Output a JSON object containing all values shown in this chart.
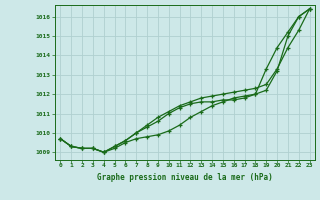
{
  "background_color": "#cde8e8",
  "grid_color": "#b0d0d0",
  "line_color": "#1a6b1a",
  "xlabel": "Graphe pression niveau de la mer (hPa)",
  "ylim": [
    1008.6,
    1016.6
  ],
  "xlim": [
    -0.5,
    23.5
  ],
  "yticks": [
    1009,
    1010,
    1011,
    1012,
    1013,
    1014,
    1015,
    1016
  ],
  "xticks": [
    0,
    1,
    2,
    3,
    4,
    5,
    6,
    7,
    8,
    9,
    10,
    11,
    12,
    13,
    14,
    15,
    16,
    17,
    18,
    19,
    20,
    21,
    22,
    23
  ],
  "series1": [
    1009.7,
    1009.3,
    1009.2,
    1009.2,
    1009.0,
    1009.2,
    1009.5,
    1009.7,
    1009.8,
    1009.9,
    1010.1,
    1010.4,
    1010.8,
    1011.1,
    1011.4,
    1011.6,
    1011.8,
    1011.9,
    1012.0,
    1012.2,
    1013.2,
    1015.0,
    1016.0,
    1016.4
  ],
  "series2": [
    1009.7,
    1009.3,
    1009.2,
    1009.2,
    1009.0,
    1009.3,
    1009.6,
    1010.0,
    1010.4,
    1010.8,
    1011.1,
    1011.4,
    1011.6,
    1011.8,
    1011.9,
    1012.0,
    1012.1,
    1012.2,
    1012.3,
    1012.5,
    1013.3,
    1014.4,
    1015.3,
    1016.4
  ],
  "series3": [
    1009.7,
    1009.3,
    1009.2,
    1009.2,
    1009.0,
    1009.3,
    1009.6,
    1010.0,
    1010.3,
    1010.6,
    1011.0,
    1011.3,
    1011.5,
    1011.6,
    1011.6,
    1011.7,
    1011.7,
    1011.8,
    1012.0,
    1013.3,
    1014.4,
    1015.2,
    1016.0,
    1016.4
  ]
}
